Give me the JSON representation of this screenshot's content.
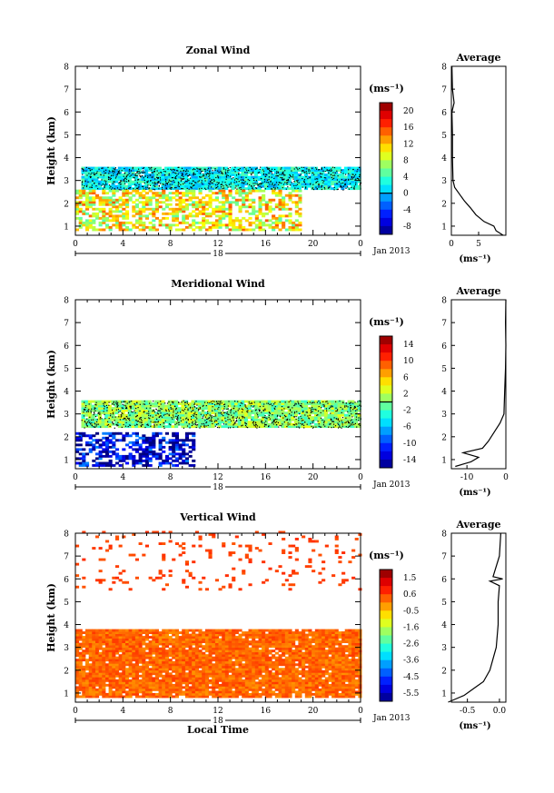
{
  "chart_data": [
    {
      "type": "heatmap",
      "title": "Zonal Wind",
      "ylabel": "Height (km)",
      "xticks": [
        "0",
        "4",
        "8",
        "12",
        "16",
        "20",
        "0"
      ],
      "day_label": "18",
      "month_label": "Jan 2013",
      "xlabel": "",
      "yticks": [
        "1",
        "2",
        "3",
        "4",
        "5",
        "6",
        "7",
        "8"
      ],
      "ylim": [
        0.6,
        8
      ],
      "colorbar": {
        "unit": "(ms⁻¹)",
        "ticks": [
          "20",
          "16",
          "12",
          "8",
          "4",
          "0",
          "-4",
          "-8"
        ],
        "range": [
          -10,
          22
        ],
        "zero_line": 0
      },
      "layers": [
        {
          "description": "dense",
          "z": 2,
          "h_from": 2.6,
          "h_to": 3.6,
          "t_from": 0.5,
          "t_to": 24,
          "wave": 0.15
        },
        {
          "description": "patchy",
          "z": 10,
          "h_from": 0.8,
          "h_to": 2.6,
          "t_from": 0,
          "t_to": 19,
          "wave": 0.3
        }
      ],
      "average": {
        "title": "Average",
        "xlim": [
          0,
          10
        ],
        "xticks": [
          "0",
          "5"
        ],
        "xlabel": "(ms⁻¹)",
        "profile": [
          [
            0.6,
            9.5
          ],
          [
            0.8,
            8.2
          ],
          [
            1.0,
            7.8
          ],
          [
            1.2,
            6.0
          ],
          [
            1.5,
            4.5
          ],
          [
            1.8,
            3.5
          ],
          [
            2.1,
            2.4
          ],
          [
            2.4,
            1.5
          ],
          [
            2.7,
            0.6
          ],
          [
            3.0,
            0.3
          ],
          [
            4.0,
            0.2
          ],
          [
            5.0,
            0.2
          ],
          [
            6.0,
            0.1
          ],
          [
            6.4,
            0.5
          ],
          [
            7.0,
            0.2
          ],
          [
            8.0,
            0.1
          ]
        ]
      }
    },
    {
      "type": "heatmap",
      "title": "Meridional Wind",
      "ylabel": "Height (km)",
      "xticks": [
        "0",
        "4",
        "8",
        "12",
        "16",
        "20",
        "0"
      ],
      "day_label": "18",
      "month_label": "Jan 2013",
      "xlabel": "",
      "yticks": [
        "1",
        "2",
        "3",
        "4",
        "5",
        "6",
        "7",
        "8"
      ],
      "ylim": [
        0.6,
        8
      ],
      "colorbar": {
        "unit": "(ms⁻¹)",
        "ticks": [
          "14",
          "10",
          "6",
          "2",
          "-2",
          "-6",
          "-10",
          "-14"
        ],
        "range": [
          -16,
          16
        ],
        "zero_line": 0
      },
      "layers": [
        {
          "description": "dense",
          "z": 0.5,
          "h_from": 2.4,
          "h_to": 3.6,
          "t_from": 0.5,
          "t_to": 24,
          "wave": 0.15
        },
        {
          "description": "patchy",
          "z": -13,
          "h_from": 0.7,
          "h_to": 2.2,
          "t_from": 0,
          "t_to": 10,
          "wave": 0.3
        }
      ],
      "average": {
        "title": "Average",
        "xlim": [
          -14,
          0
        ],
        "xticks": [
          "-10",
          "0"
        ],
        "xlabel": "(ms⁻¹)",
        "profile": [
          [
            0.7,
            -13
          ],
          [
            0.9,
            -9
          ],
          [
            1.1,
            -7
          ],
          [
            1.3,
            -11
          ],
          [
            1.5,
            -6
          ],
          [
            1.8,
            -4.5
          ],
          [
            2.2,
            -3
          ],
          [
            2.6,
            -1.5
          ],
          [
            3.0,
            -0.5
          ],
          [
            4.0,
            -0.3
          ],
          [
            5.0,
            -0.1
          ],
          [
            6.0,
            0
          ],
          [
            7.0,
            -0.1
          ],
          [
            8.0,
            0
          ]
        ]
      }
    },
    {
      "type": "heatmap",
      "title": "Vertical Wind",
      "ylabel": "Height (km)",
      "xticks": [
        "0",
        "4",
        "8",
        "12",
        "16",
        "20",
        "0"
      ],
      "day_label": "18",
      "month_label": "Jan 2013",
      "xlabel": "Local Time",
      "yticks": [
        "1",
        "2",
        "3",
        "4",
        "5",
        "6",
        "7",
        "8"
      ],
      "ylim": [
        0.6,
        8
      ],
      "colorbar": {
        "unit": "(ms⁻¹)",
        "ticks": [
          "1.5",
          "0.6",
          "-0.5",
          "-1.6",
          "-2.6",
          "-3.6",
          "-4.5",
          "-5.5"
        ],
        "range": [
          -6,
          2
        ],
        "zero_line": null
      },
      "layers": [
        {
          "description": "dense",
          "z": 0.2,
          "h_from": 0.8,
          "h_to": 3.8,
          "t_from": 0,
          "t_to": 24,
          "wave": 0.05
        },
        {
          "description": "sparse",
          "z": 0.5,
          "h_from": 5.5,
          "h_to": 8.0,
          "t_from": 0,
          "t_to": 24,
          "wave": 0
        }
      ],
      "average": {
        "title": "Average",
        "xlim": [
          -0.75,
          0.1
        ],
        "xticks": [
          "-0.5",
          "0.0"
        ],
        "xlabel": "(ms⁻¹)",
        "profile": [
          [
            0.6,
            -0.8
          ],
          [
            0.9,
            -0.55
          ],
          [
            1.2,
            -0.4
          ],
          [
            1.5,
            -0.25
          ],
          [
            2.0,
            -0.15
          ],
          [
            2.5,
            -0.1
          ],
          [
            3.0,
            -0.05
          ],
          [
            4.0,
            -0.02
          ],
          [
            5.0,
            -0.02
          ],
          [
            5.7,
            0
          ],
          [
            5.9,
            -0.15
          ],
          [
            6.0,
            0.05
          ],
          [
            6.1,
            -0.1
          ],
          [
            7.0,
            0
          ],
          [
            8.0,
            0.02
          ]
        ]
      }
    }
  ]
}
